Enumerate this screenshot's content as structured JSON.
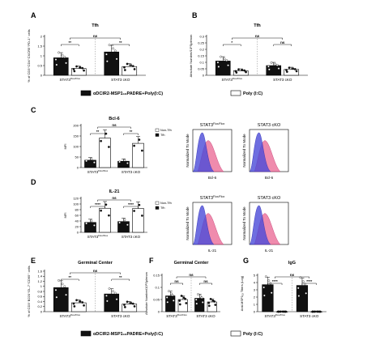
{
  "legend": {
    "items": [
      {
        "label": "αDCIR2-MSP1₁₉PADRE+Poly(I:C)",
        "color": "#111111"
      },
      {
        "label": "Poly (I:C)",
        "color": "#ffffff"
      }
    ]
  },
  "labels": {
    "stat3_ff": "STAT3",
    "stat3_ff_sup": "Flox/Flox",
    "stat3_cko": "STAT3 cKO",
    "stat3_cko_inline": "STAT3 cKO",
    "bcl6": "Bcl-6",
    "il21": "IL-21",
    "norm_mode": "Normalized To Mode"
  },
  "chart_data": [
    {
      "id": "A",
      "type": "bar",
      "title": "Tfh",
      "ylabel": "% of CD3⁺CD4⁺CXCR5⁺PD-1⁺ cells",
      "ylim": [
        0,
        2.0
      ],
      "yticks": [
        0,
        0.5,
        1.0,
        1.5,
        2.0
      ],
      "groups": [
        "STAT3Flox/Flox",
        "STAT3 cKO"
      ],
      "group_labels": [
        "STAT3",
        "STAT3 cKO"
      ],
      "series": [
        {
          "name": "αDCIR2-MSP1₁₉PADRE+Poly(I:C)",
          "values": [
            0.9,
            1.2
          ]
        },
        {
          "name": "Poly (I:C)",
          "values": [
            0.35,
            0.45
          ]
        }
      ],
      "sig": [
        {
          "label": "**"
        },
        {
          "label": "**"
        },
        {
          "label": "ns"
        }
      ]
    },
    {
      "id": "B",
      "type": "bar",
      "title": "Tfh",
      "ylabel": "Absolute Number/10⁶Splenon",
      "ylim": [
        0,
        0.3
      ],
      "yticks": [
        0,
        0.05,
        0.1,
        0.15,
        0.2,
        0.25,
        0.3
      ],
      "groups": [
        "STAT3Flox/Flox",
        "STAT3 cKO"
      ],
      "group_labels": [
        "STAT3",
        "STAT3 cKO"
      ],
      "series": [
        {
          "name": "αDCIR2-MSP1₁₉PADRE+Poly(I:C)",
          "values": [
            0.11,
            0.075
          ]
        },
        {
          "name": "Poly (I:C)",
          "values": [
            0.035,
            0.045
          ]
        }
      ],
      "sig": [
        {
          "label": "*"
        },
        {
          "label": "ns"
        },
        {
          "label": "ns"
        }
      ]
    },
    {
      "id": "C",
      "type": "bar",
      "title": "Bcl-6",
      "ylabel": "MFI",
      "ylim": [
        0,
        200
      ],
      "yticks": [
        0,
        50,
        100,
        150,
        200
      ],
      "groups": [
        "STAT3Flox/Flox",
        "STAT3 cKO"
      ],
      "group_labels": [
        "STAT3",
        "STAT3 cKO"
      ],
      "series": [
        {
          "name": "Non-Tfh",
          "values": [
            35,
            30
          ]
        },
        {
          "name": "Tfh",
          "values": [
            140,
            115
          ]
        }
      ],
      "sig": [
        {
          "label": "**"
        },
        {
          "label": "**"
        },
        {
          "label": "ns"
        }
      ],
      "legend": [
        "Non-Tfh",
        "Tfh"
      ]
    },
    {
      "id": "D",
      "type": "bar",
      "title": "IL-21",
      "ylabel": "MFI",
      "ylim": [
        0,
        120
      ],
      "yticks": [
        0,
        20,
        40,
        60,
        80,
        100,
        120
      ],
      "groups": [
        "STAT3Flox/Flox",
        "STAT3 cKO"
      ],
      "group_labels": [
        "STAT3",
        "STAT3 cKO"
      ],
      "series": [
        {
          "name": "Non-Tfh",
          "values": [
            35,
            38
          ]
        },
        {
          "name": "Tfh",
          "values": [
            85,
            84
          ]
        }
      ],
      "sig": [
        {
          "label": "****"
        },
        {
          "label": "****"
        },
        {
          "label": "ns"
        }
      ],
      "legend": [
        "Non-Tfh",
        "Tfh"
      ]
    },
    {
      "id": "E",
      "type": "bar",
      "title": "Germinal Center",
      "ylabel": "% of CD3⁻B220⁺GL-7⁺CD95⁺ cells",
      "ylim": [
        0,
        1.6
      ],
      "yticks": [
        0,
        0.2,
        0.4,
        0.6,
        0.8,
        1.0,
        1.2,
        1.4,
        1.6
      ],
      "groups": [
        "STAT3Flox/Flox",
        "STAT3 cKO"
      ],
      "group_labels": [
        "STAT3",
        "STAT3 cKO"
      ],
      "series": [
        {
          "name": "αDCIR2-MSP1₁₉PADRE+Poly(I:C)",
          "values": [
            0.95,
            0.7
          ]
        },
        {
          "name": "Poly (I:C)",
          "values": [
            0.35,
            0.3
          ]
        }
      ],
      "sig": [
        {
          "label": "**"
        },
        {
          "label": "**"
        },
        {
          "label": "ns"
        }
      ]
    },
    {
      "id": "F",
      "type": "bar",
      "title": "Germinal Center",
      "ylabel": "Absolute Number/10⁶Splenon",
      "ylim": [
        0,
        0.15
      ],
      "yticks": [
        0,
        0.05,
        0.1,
        0.15
      ],
      "groups": [
        "STAT3Flox/Flox",
        "STAT3 cKO"
      ],
      "group_labels": [
        "STAT3",
        "STAT3 cKO"
      ],
      "series": [
        {
          "name": "αDCIR2-MSP1₁₉PADRE+Poly(I:C)",
          "values": [
            0.065,
            0.055
          ]
        },
        {
          "name": "Poly (I:C)",
          "values": [
            0.05,
            0.04
          ]
        }
      ],
      "sig": [
        {
          "label": "ns"
        },
        {
          "label": "ns"
        },
        {
          "label": "ns"
        }
      ]
    },
    {
      "id": "G",
      "type": "bar",
      "title": "IgG",
      "ylabel": "Anti-MSP1₁₉ Titers (Log)",
      "ylim": [
        0,
        5
      ],
      "yticks": [
        0,
        1,
        2,
        3,
        4,
        5
      ],
      "groups": [
        "STAT3Flox/Flox",
        "STAT3 cKO"
      ],
      "group_labels": [
        "STAT3",
        "STAT3 cKO"
      ],
      "series": [
        {
          "name": "αDCIR2-MSP1₁₉PADRE+Poly(I:C)",
          "values": [
            3.7,
            3.6
          ]
        },
        {
          "name": "Poly (I:C)",
          "values": [
            0.0,
            0.0
          ]
        }
      ],
      "sig": [
        {
          "label": "****"
        },
        {
          "label": "****"
        },
        {
          "label": "ns"
        }
      ]
    },
    {
      "id": "C-hist",
      "type": "histogram",
      "xlabel": "Bcl-6",
      "ylabel": "Normalized To Mode",
      "panels": [
        "STAT3Flox/Flox",
        "STAT3 cKO"
      ],
      "series_colors": {
        "Non-Tfh": "#4a4ad8",
        "Tfh": "#e85a8a"
      }
    },
    {
      "id": "D-hist",
      "type": "histogram",
      "xlabel": "IL-21",
      "ylabel": "Normalized To Mode",
      "panels": [
        "STAT3Flox/Flox",
        "STAT3 cKO"
      ],
      "series_colors": {
        "Non-Tfh": "#4a4ad8",
        "Tfh": "#e85a8a"
      }
    }
  ]
}
